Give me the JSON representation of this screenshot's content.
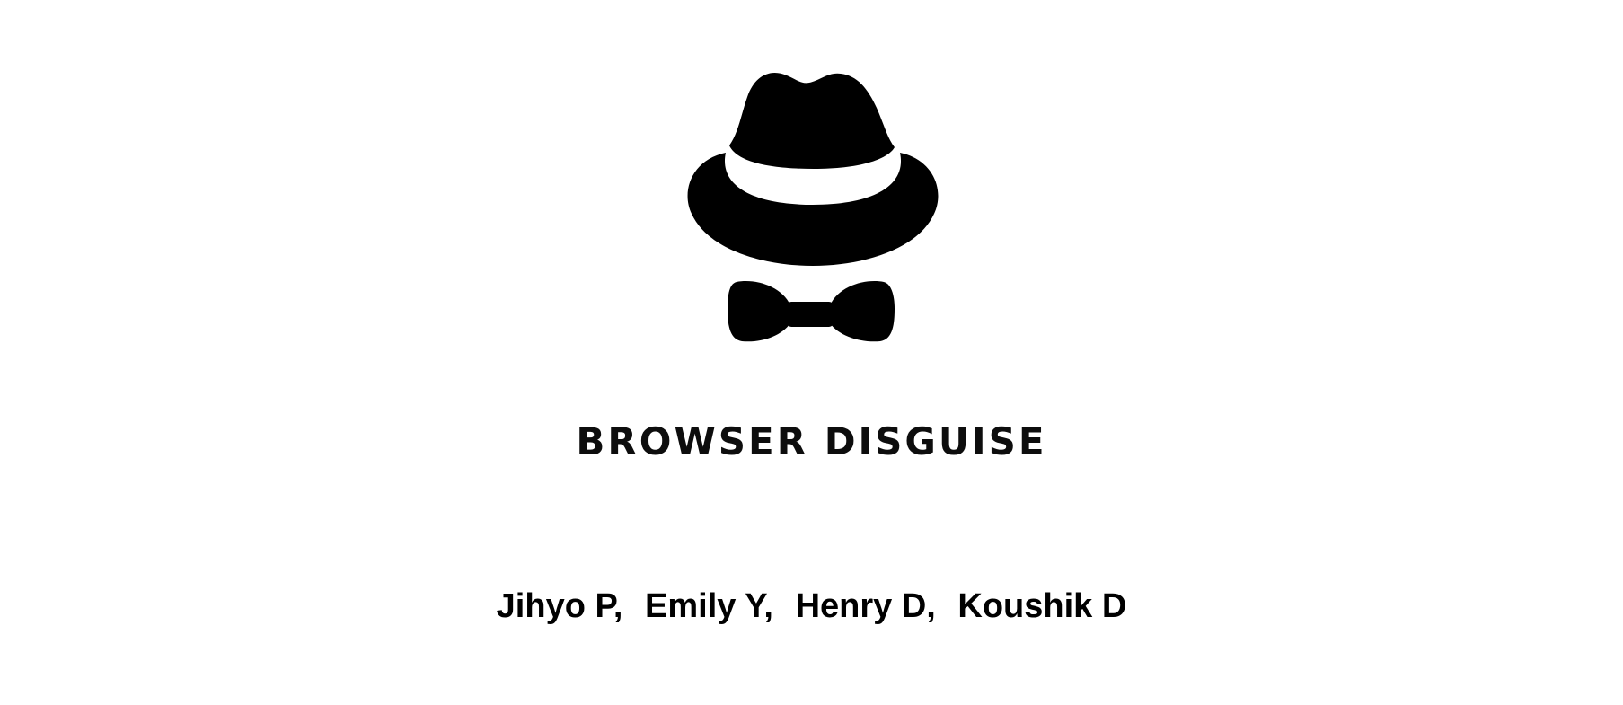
{
  "logo": {
    "icon": "fedora-hat-and-bow-tie-logo",
    "color": "#000000"
  },
  "brand": {
    "title": "BROWSER DISGUISE"
  },
  "authors": [
    "Jihyo P,",
    "Emily Y,",
    "Henry D,",
    "Koushik D"
  ]
}
